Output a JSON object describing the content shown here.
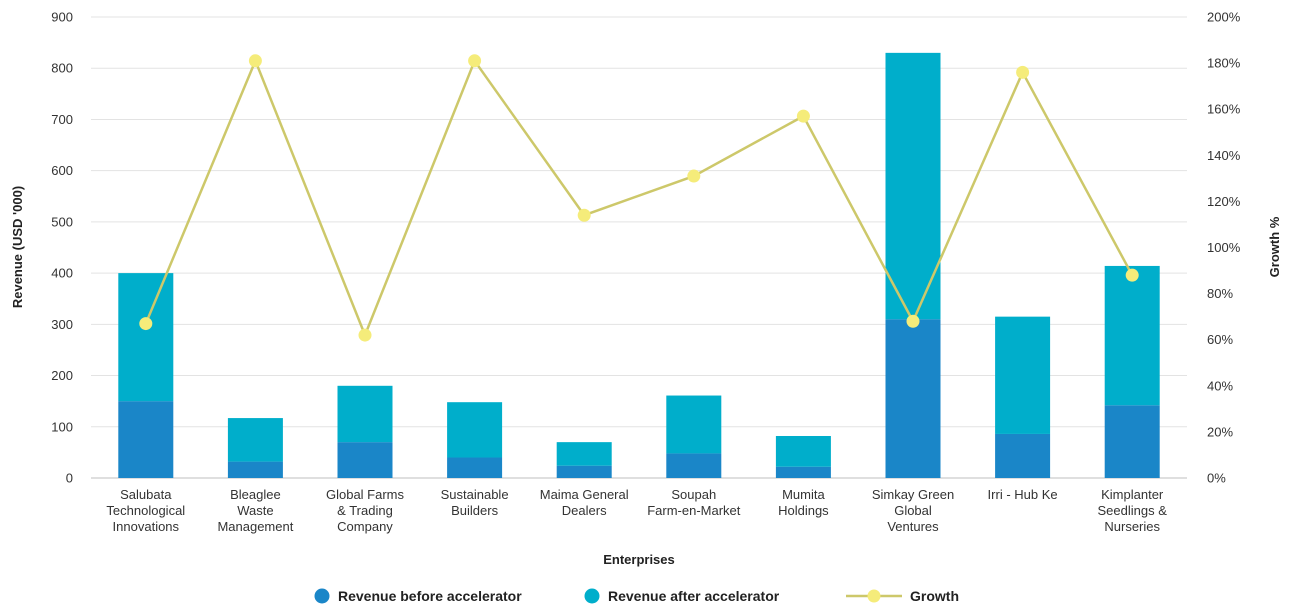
{
  "chart_data": {
    "type": "bar",
    "stacked": true,
    "xlabel": "Enterprises",
    "ylabel": "Revenue (USD '000)",
    "y2label": "Growth %",
    "ylim": [
      0,
      900
    ],
    "y2lim": [
      0,
      200
    ],
    "yticks": [
      "0",
      "100",
      "200",
      "300",
      "400",
      "500",
      "600",
      "700",
      "800",
      "900"
    ],
    "y2ticks": [
      "0%",
      "20%",
      "40%",
      "60%",
      "80%",
      "100%",
      "120%",
      "140%",
      "160%",
      "180%",
      "200%"
    ],
    "grid": true,
    "legend_position": "bottom",
    "categories": [
      [
        "Salubata",
        "Technological",
        "Innovations"
      ],
      [
        "Bleaglee",
        "Waste",
        "Management"
      ],
      [
        "Global Farms",
        "& Trading",
        "Company"
      ],
      [
        "Sustainable",
        "Builders"
      ],
      [
        "Maima General",
        "Dealers"
      ],
      [
        "Soupah",
        "Farm-en-Market"
      ],
      [
        "Mumita",
        "Holdings"
      ],
      [
        "Simkay Green",
        "Global",
        "Ventures"
      ],
      [
        "Irri - Hub Ke"
      ],
      [
        "Kimplanter",
        "Seedlings &",
        "Nurseries"
      ]
    ],
    "series": [
      {
        "name": "Revenue before accelerator",
        "type": "bar",
        "color": "#1a86c8",
        "values": [
          150,
          32,
          70,
          40,
          24,
          48,
          22,
          310,
          86,
          142
        ]
      },
      {
        "name": "Revenue after accelerator",
        "type": "bar",
        "color": "#00aecb",
        "values": [
          250,
          85,
          110,
          108,
          46,
          113,
          60,
          520,
          229,
          272
        ]
      },
      {
        "name": "Growth",
        "type": "line",
        "axis": "secondary",
        "color": "#cdc86a",
        "marker_color": "#f5ec7a",
        "values": [
          67,
          181,
          62,
          181,
          114,
          131,
          157,
          68,
          176,
          88
        ]
      }
    ]
  }
}
